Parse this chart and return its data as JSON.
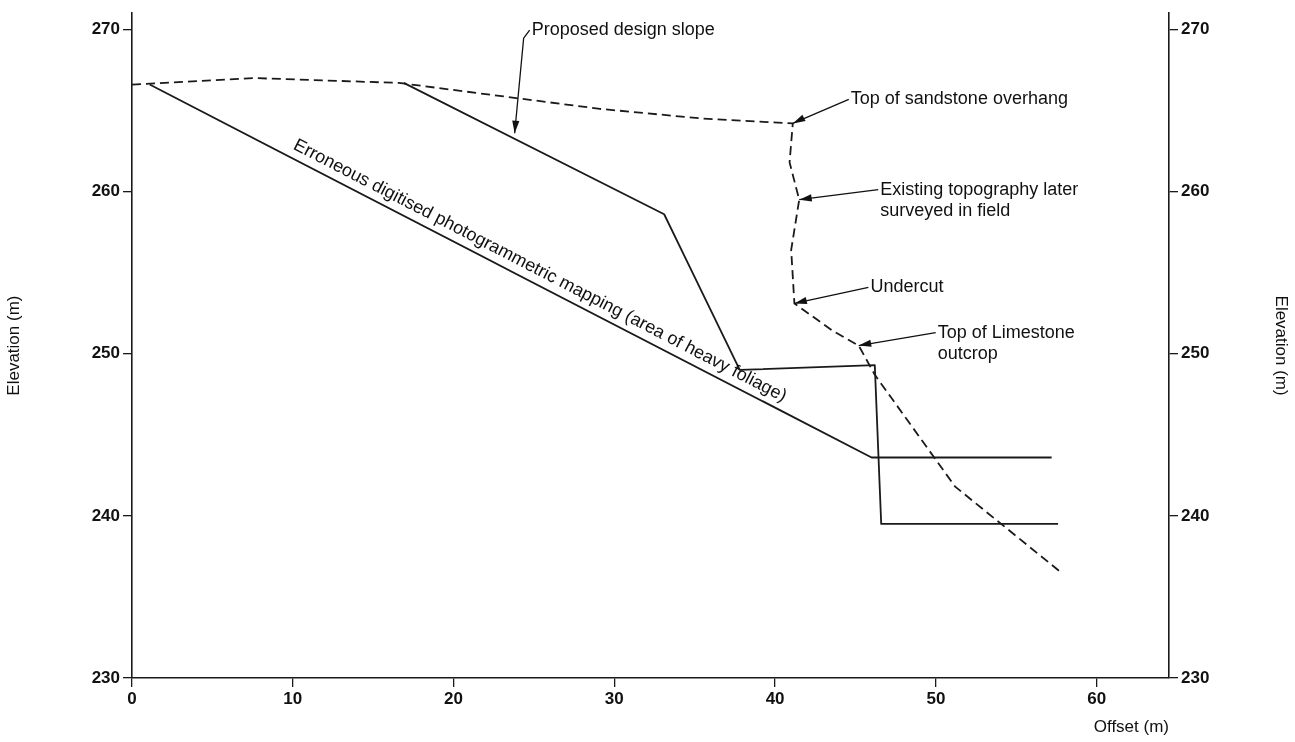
{
  "chart_data": {
    "type": "line",
    "xlabel": "Offset (m)",
    "ylabel": "Elevation (m)",
    "y2label": "Elevation (m)",
    "xlim": [
      0,
      64.5
    ],
    "xticks": [
      0,
      10,
      20,
      30,
      40,
      50,
      60
    ],
    "ylim": [
      230,
      271
    ],
    "yticks": [
      230,
      240,
      250,
      260,
      270
    ],
    "y2lim": [
      230,
      271
    ],
    "y2ticks": [
      230,
      240,
      250,
      260,
      270
    ],
    "grid": false,
    "legend": false,
    "marker": "none",
    "series": [
      {
        "color": "#1a1a1a",
        "line_style": "solid",
        "x": [
          1.1,
          46.0,
          57.2
        ],
        "values": [
          266.6,
          243.6,
          243.6
        ]
      },
      {
        "color": "#1a1a1a",
        "line_style": "solid",
        "x": [
          16.9,
          33.1,
          37.8,
          46.2,
          46.6,
          57.6
        ],
        "values": [
          266.7,
          258.6,
          249.0,
          249.3,
          239.5,
          239.5
        ]
      },
      {
        "color": "#1a1a1a",
        "line_style": "dashed",
        "x": [
          0,
          7.6,
          16.6,
          29.1,
          35.5,
          41.1,
          40.9,
          41.5,
          41.0,
          41.2,
          43.6,
          45.2,
          46.2,
          51.2,
          57.8
        ],
        "values": [
          266.6,
          267.0,
          266.7,
          265.1,
          264.5,
          264.2,
          261.8,
          259.5,
          256.4,
          253.1,
          251.4,
          250.5,
          248.7,
          241.8,
          236.5
        ]
      }
    ],
    "annotations": [
      {
        "text": "Proposed design slope",
        "x": 23.8,
        "y": 263.6
      },
      {
        "text": "Top of sandstone overhang",
        "x": 41.1,
        "y": 264.2
      },
      {
        "text": "Existing topography later\nsurveyed in field",
        "x": 41.5,
        "y": 259.5
      },
      {
        "text": "Undercut",
        "x": 41.2,
        "y": 253.1
      },
      {
        "text": "Top of Limestone\noutcrop",
        "x": 45.2,
        "y": 250.5
      },
      {
        "text": "Erroneous digitised photogrammetric mapping (area of heavy foliage)",
        "x": 25,
        "y": 254.4
      }
    ]
  }
}
